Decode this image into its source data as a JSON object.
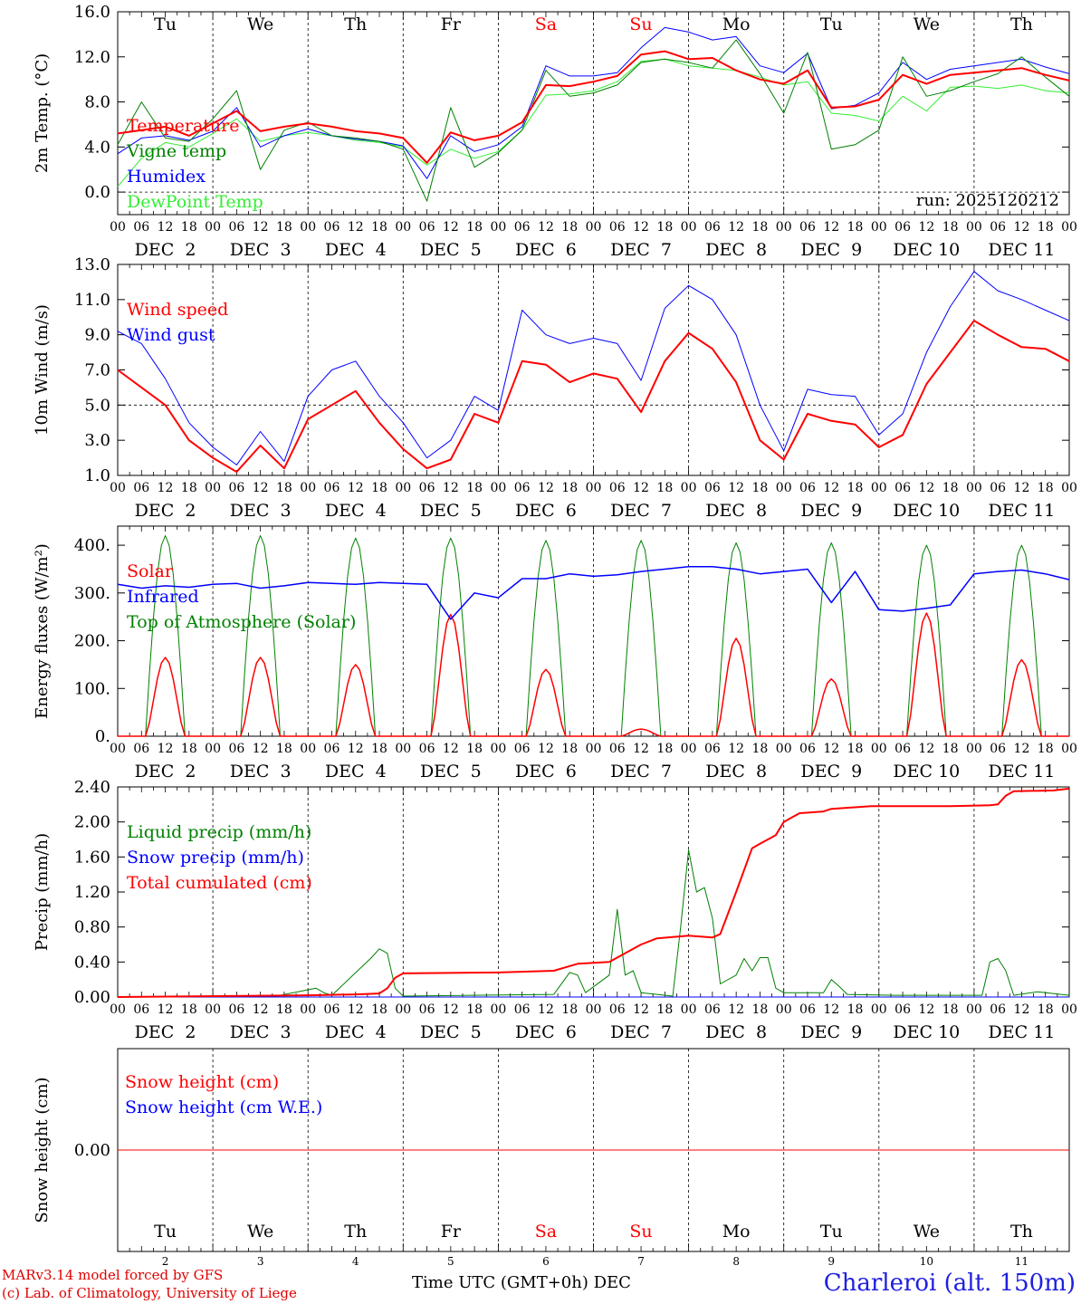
{
  "colors": {
    "red": "#ff0000",
    "green": "#008000",
    "blue": "#0000ff",
    "lightgreen": "#33ee33",
    "weekend": "#ff0000",
    "text": "#000000"
  },
  "hour_ticks": [
    "00",
    "06",
    "12",
    "18"
  ],
  "dates": [
    "DEC  2",
    "DEC  3",
    "DEC  4",
    "DEC  5",
    "DEC  6",
    "DEC  7",
    "DEC  8",
    "DEC  9",
    "DEC 10",
    "DEC 11"
  ],
  "weekdays": [
    {
      "label": "Tu",
      "weekend": false
    },
    {
      "label": "We",
      "weekend": false
    },
    {
      "label": "Th",
      "weekend": false
    },
    {
      "label": "Fr",
      "weekend": false
    },
    {
      "label": "Sa",
      "weekend": true
    },
    {
      "label": "Su",
      "weekend": true
    },
    {
      "label": "Mo",
      "weekend": false
    },
    {
      "label": "Tu",
      "weekend": false
    },
    {
      "label": "We",
      "weekend": false
    },
    {
      "label": "Th",
      "weekend": false
    }
  ],
  "day_numbers": [
    "2",
    "3",
    "4",
    "5",
    "6",
    "7",
    "8",
    "9",
    "10",
    "11"
  ],
  "footer": {
    "credit_line1": "MARv3.14 model forced by GFS",
    "credit_line2": "(c) Lab. of Climatology, University of Liege",
    "xlabel": "Time UTC (GMT+0h) DEC",
    "station": "Charleroi (alt. 150m)"
  },
  "chart_data": [
    {
      "id": "temp",
      "type": "line",
      "ylabel": "2m Temp. (°C)",
      "ylim": [
        -2.0,
        16.0
      ],
      "yticks": [
        "16.0",
        "12.0",
        "8.0",
        "4.0",
        "0.0"
      ],
      "ytick_values": [
        16,
        12,
        8,
        4,
        0
      ],
      "reference_line": 0,
      "run": "run: 2025120212",
      "x_hours": [
        0,
        6,
        12,
        18,
        24,
        30,
        36,
        42,
        48,
        54,
        60,
        66,
        72,
        78,
        84,
        90,
        96,
        102,
        108,
        114,
        120,
        126,
        132,
        138,
        144,
        150,
        156,
        162,
        168,
        174,
        180,
        186,
        192,
        198,
        204,
        210,
        216,
        222,
        228,
        234,
        240
      ],
      "series": [
        {
          "name": "Temperature",
          "color": "red",
          "width": 2,
          "values": [
            5.2,
            5.5,
            5.8,
            5.0,
            6.1,
            7.2,
            5.4,
            5.8,
            6.1,
            5.8,
            5.4,
            5.2,
            4.8,
            2.6,
            5.3,
            4.6,
            5.0,
            6.2,
            9.5,
            9.4,
            9.8,
            10.3,
            12.2,
            12.5,
            11.8,
            11.9,
            10.8,
            10.0,
            9.6,
            10.8,
            7.5,
            7.6,
            8.2,
            10.4,
            9.6,
            10.4,
            10.6,
            10.8,
            11.0,
            10.4,
            9.9
          ]
        },
        {
          "name": "Vigne temp",
          "color": "green",
          "width": 1,
          "values": [
            4.2,
            8.0,
            4.8,
            4.5,
            6.5,
            9.0,
            2.0,
            5.5,
            6.2,
            5.0,
            4.8,
            4.5,
            3.8,
            -0.8,
            7.5,
            2.2,
            3.5,
            5.5,
            10.8,
            8.5,
            8.8,
            9.5,
            11.5,
            11.8,
            11.5,
            11.0,
            13.5,
            10.5,
            7.0,
            12.4,
            3.8,
            4.2,
            5.5,
            12.0,
            8.5,
            9.0,
            9.8,
            10.5,
            12.0,
            10.2,
            8.5
          ]
        },
        {
          "name": "Humidex",
          "color": "blue",
          "width": 1,
          "values": [
            3.4,
            4.8,
            5.0,
            4.6,
            5.4,
            7.5,
            4.0,
            5.0,
            5.6,
            5.0,
            4.7,
            4.5,
            4.1,
            1.2,
            5.0,
            3.6,
            4.2,
            5.8,
            11.2,
            10.3,
            10.3,
            10.6,
            12.8,
            14.6,
            14.2,
            13.5,
            13.8,
            11.2,
            10.6,
            12.3,
            7.4,
            7.7,
            8.8,
            11.5,
            10.0,
            10.9,
            11.2,
            11.5,
            11.8,
            11.1,
            10.5
          ]
        },
        {
          "name": "DewPoint Temp",
          "color": "lightgreen",
          "width": 1,
          "values": [
            0.5,
            3.0,
            4.4,
            4.0,
            5.2,
            6.5,
            4.5,
            5.0,
            5.3,
            5.0,
            4.6,
            4.4,
            4.0,
            2.4,
            3.8,
            3.0,
            3.6,
            5.5,
            8.6,
            8.7,
            9.0,
            9.8,
            11.6,
            11.8,
            11.2,
            11.0,
            10.8,
            10.2,
            9.5,
            9.8,
            7.0,
            6.8,
            6.3,
            8.5,
            7.2,
            9.3,
            9.4,
            9.2,
            9.5,
            9.0,
            8.8
          ]
        }
      ]
    },
    {
      "id": "wind",
      "type": "line",
      "ylabel": "10m Wind (m/s)",
      "ylim": [
        1.0,
        13.0
      ],
      "yticks": [
        "13.0",
        "11.0",
        "9.0",
        "7.0",
        "5.0",
        "3.0",
        "1.0"
      ],
      "ytick_values": [
        13,
        11,
        9,
        7,
        5,
        3,
        1
      ],
      "reference_line": 5,
      "x_hours": [
        0,
        6,
        12,
        18,
        24,
        30,
        36,
        42,
        48,
        54,
        60,
        66,
        72,
        78,
        84,
        90,
        96,
        102,
        108,
        114,
        120,
        126,
        132,
        138,
        144,
        150,
        156,
        162,
        168,
        174,
        180,
        186,
        192,
        198,
        204,
        210,
        216,
        222,
        228,
        234,
        240
      ],
      "series": [
        {
          "name": "Wind speed",
          "color": "red",
          "width": 2,
          "values": [
            7.0,
            6.0,
            5.0,
            3.0,
            2.0,
            1.2,
            2.7,
            1.4,
            4.2,
            5.0,
            5.8,
            4.0,
            2.5,
            1.4,
            1.9,
            4.5,
            4.0,
            7.5,
            7.3,
            6.3,
            6.8,
            6.5,
            4.6,
            7.5,
            9.1,
            8.2,
            6.3,
            3.0,
            1.9,
            4.5,
            4.1,
            3.9,
            2.6,
            3.3,
            6.2,
            8.0,
            9.8,
            9.0,
            8.3,
            8.2,
            7.5
          ]
        },
        {
          "name": "Wind gust",
          "color": "blue",
          "width": 1,
          "values": [
            9.2,
            8.5,
            6.5,
            4.0,
            2.6,
            1.6,
            3.5,
            1.8,
            5.5,
            7.0,
            7.5,
            5.5,
            4.0,
            2.0,
            3.0,
            5.5,
            4.7,
            10.4,
            9.0,
            8.5,
            8.8,
            8.5,
            6.4,
            10.5,
            11.8,
            11.0,
            9.0,
            5.0,
            2.4,
            5.9,
            5.6,
            5.5,
            3.3,
            4.5,
            8.0,
            10.6,
            12.6,
            11.5,
            11.0,
            10.4,
            9.8
          ]
        }
      ]
    },
    {
      "id": "energy",
      "type": "line",
      "ylabel": "Energy fluxes (W/m²)",
      "ylim": [
        0,
        440
      ],
      "yticks": [
        "400.",
        "300.",
        "200.",
        "100.",
        "0."
      ],
      "ytick_values": [
        400,
        300,
        200,
        100,
        0
      ],
      "reference_line": null,
      "infrared": {
        "x_hours": [
          0,
          6,
          12,
          18,
          24,
          30,
          36,
          42,
          48,
          54,
          60,
          66,
          72,
          78,
          84,
          90,
          96,
          102,
          108,
          114,
          120,
          126,
          132,
          138,
          144,
          150,
          156,
          162,
          168,
          174,
          180,
          186,
          192,
          198,
          204,
          210,
          216,
          222,
          228,
          234,
          240
        ],
        "values": [
          318,
          310,
          315,
          312,
          318,
          320,
          310,
          315,
          322,
          320,
          318,
          322,
          320,
          318,
          245,
          300,
          290,
          330,
          330,
          340,
          335,
          338,
          345,
          350,
          355,
          355,
          350,
          340,
          345,
          350,
          280,
          345,
          265,
          262,
          268,
          275,
          340,
          345,
          348,
          340,
          328
        ]
      },
      "daily_peaks": [
        {
          "toa": 420,
          "solar": 165
        },
        {
          "toa": 420,
          "solar": 165
        },
        {
          "toa": 415,
          "solar": 150
        },
        {
          "toa": 415,
          "solar": 255
        },
        {
          "toa": 410,
          "solar": 140
        },
        {
          "toa": 410,
          "solar": 15
        },
        {
          "toa": 405,
          "solar": 205
        },
        {
          "toa": 405,
          "solar": 120
        },
        {
          "toa": 400,
          "solar": 258
        },
        {
          "toa": 400,
          "solar": 160
        }
      ],
      "series_legend": [
        {
          "name": "Solar",
          "color": "red"
        },
        {
          "name": "Infrared",
          "color": "blue"
        },
        {
          "name": "Top of Atmosphere (Solar)",
          "color": "green"
        }
      ]
    },
    {
      "id": "precip",
      "type": "line",
      "ylabel": "Precip (mm/h)",
      "ylim": [
        0.0,
        2.4
      ],
      "yticks": [
        "2.40",
        "2.00",
        "1.60",
        "1.20",
        "0.80",
        "0.40",
        "0.00"
      ],
      "ytick_values": [
        2.4,
        2.0,
        1.6,
        1.2,
        0.8,
        0.4,
        0.0
      ],
      "reference_line": null,
      "series": [
        {
          "name": "Liquid precip (mm/h)",
          "color": "green",
          "width": 1,
          "x_hours": [
            0,
            40,
            50,
            52,
            54,
            64,
            66,
            68,
            70,
            72,
            110,
            114,
            116,
            118,
            124,
            126,
            128,
            130,
            132,
            140,
            142,
            144,
            146,
            148,
            150,
            152,
            156,
            158,
            160,
            162,
            164,
            166,
            168,
            170,
            178,
            180,
            182,
            184,
            196,
            218,
            220,
            222,
            224,
            226,
            232,
            240
          ],
          "values": [
            0,
            0.01,
            0.1,
            0.05,
            0.02,
            0.45,
            0.55,
            0.5,
            0.1,
            0.01,
            0.03,
            0.28,
            0.25,
            0.05,
            0.25,
            1.0,
            0.25,
            0.3,
            0.05,
            0.01,
            0.8,
            1.68,
            1.2,
            1.25,
            0.9,
            0.15,
            0.25,
            0.44,
            0.3,
            0.45,
            0.45,
            0.1,
            0.05,
            0.05,
            0.05,
            0.2,
            0.12,
            0.03,
            0.02,
            0.02,
            0.4,
            0.44,
            0.3,
            0.02,
            0.06,
            0.02
          ]
        },
        {
          "name": "Snow precip (mm/h)",
          "color": "blue",
          "width": 1,
          "x_hours": [
            0,
            240
          ],
          "values": [
            0,
            0
          ]
        },
        {
          "name": "Total cumulated (cm)",
          "color": "red",
          "width": 2,
          "x_hours": [
            0,
            48,
            60,
            66,
            68,
            70,
            72,
            96,
            110,
            116,
            124,
            132,
            136,
            144,
            150,
            152,
            156,
            160,
            162,
            164,
            166,
            168,
            170,
            172,
            178,
            180,
            190,
            210,
            220,
            222,
            224,
            226,
            236,
            240
          ],
          "values": [
            0,
            0.02,
            0.03,
            0.04,
            0.1,
            0.22,
            0.27,
            0.28,
            0.3,
            0.38,
            0.4,
            0.6,
            0.67,
            0.7,
            0.68,
            0.72,
            1.2,
            1.7,
            1.75,
            1.8,
            1.85,
            2.0,
            2.05,
            2.1,
            2.12,
            2.15,
            2.18,
            2.18,
            2.19,
            2.2,
            2.3,
            2.35,
            2.36,
            2.38
          ]
        }
      ]
    },
    {
      "id": "snow",
      "type": "line",
      "ylabel": "Snow height (cm)",
      "ylim": [
        -1.0,
        1.0
      ],
      "yticks": [
        "0.00"
      ],
      "ytick_values": [
        0
      ],
      "reference_line": null,
      "series": [
        {
          "name": "Snow height (cm)",
          "color": "red",
          "width": 1,
          "x_hours": [
            0,
            240
          ],
          "values": [
            0,
            0
          ]
        },
        {
          "name": "Snow height (cm W.E.)",
          "color": "blue",
          "width": 1,
          "x_hours": [],
          "values": []
        }
      ]
    }
  ]
}
